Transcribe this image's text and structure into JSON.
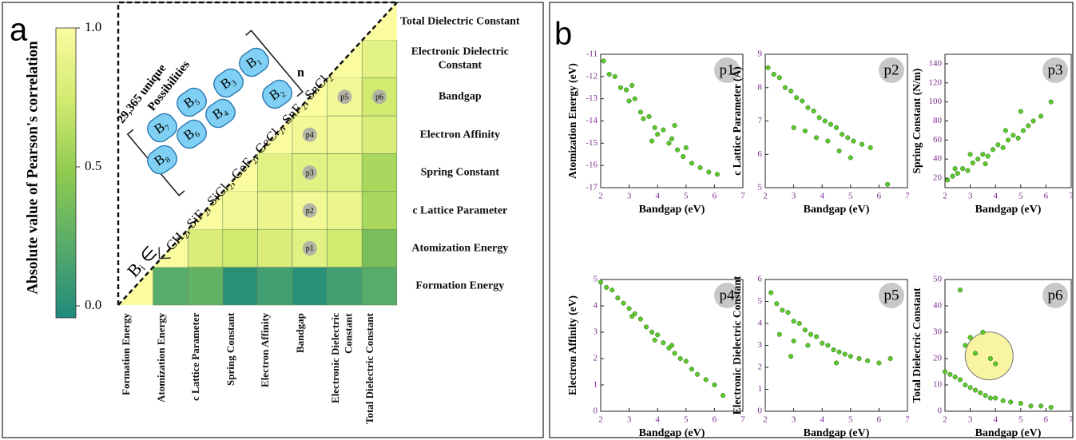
{
  "panel_labels": [
    "a",
    "b"
  ],
  "inset": {
    "count_line1": "29,365 unique",
    "count_line2": "Possibilities",
    "exponent": "n",
    "blocks": [
      "B₁",
      "B₂",
      "B₃",
      "B₄",
      "B₅",
      "B₆",
      "B₇",
      "B₈"
    ],
    "membership": "Bᵢ ∈",
    "members": "CH₂, SiF₂, SiCl₂, GeF₂, GeCl₂, SnF₂, SnCl₂"
  },
  "chart_data": [
    {
      "type": "heatmap",
      "variables": [
        "Formation Energy",
        "Atomization Energy",
        "c Lattice Parameter",
        "Spring Constant",
        "Electron Affinity",
        "Bandgap",
        "Electronic Dielectric Constant",
        "Total Dielectric Constant"
      ],
      "values": [
        [
          1,
          0.25,
          0.3,
          0.05,
          0.15,
          0.05,
          0.15,
          0.25
        ],
        [
          null,
          1,
          0.8,
          0.75,
          0.8,
          0.85,
          0.75,
          0.4
        ],
        [
          null,
          null,
          1,
          0.95,
          0.9,
          0.95,
          0.9,
          0.6
        ],
        [
          null,
          null,
          null,
          1,
          0.85,
          0.85,
          0.85,
          0.6
        ],
        [
          null,
          null,
          null,
          null,
          1,
          0.95,
          0.95,
          0.8
        ],
        [
          null,
          null,
          null,
          null,
          null,
          1,
          0.95,
          0.75
        ],
        [
          null,
          null,
          null,
          null,
          null,
          null,
          1,
          0.85
        ],
        [
          null,
          null,
          null,
          null,
          null,
          null,
          null,
          1
        ]
      ],
      "colorbar_label": "Absolute value of Pearson's correlation",
      "clim": [
        0,
        1
      ],
      "cticks": [
        {
          "value": 0,
          "label": "0.0"
        },
        0.5,
        {
          "value": 1,
          "label": "1.0"
        }
      ],
      "colors": [
        "#1f8a7c",
        "#58ab6a",
        "#8fcb50",
        "#d2ea70",
        "#fbfba0"
      ],
      "cell_labels": [
        "p1",
        "p2",
        "p3",
        "p4",
        "p5",
        "p6"
      ]
    },
    {
      "type": "scatter",
      "badge": "p1",
      "xlabel": "Bandgap (eV)",
      "ylabel": "Atomization Energy (eV)",
      "color": "#5cc82e",
      "x": [
        2.1,
        2.3,
        2.5,
        2.7,
        2.9,
        3.0,
        3.2,
        3.4,
        3.5,
        3.7,
        3.9,
        4.0,
        4.2,
        4.4,
        4.5,
        4.7,
        4.9,
        5.0,
        5.2,
        5.5,
        5.8,
        6.1,
        3.1,
        3.8,
        4.6
      ],
      "values": [
        -11.3,
        -11.9,
        -12.0,
        -12.5,
        -12.6,
        -13.1,
        -13.0,
        -13.6,
        -13.9,
        -13.8,
        -14.3,
        -14.6,
        -14.4,
        -15.0,
        -14.8,
        -15.3,
        -15.6,
        -15.2,
        -15.9,
        -16.1,
        -16.3,
        -16.4,
        -12.4,
        -14.9,
        -14.2
      ],
      "xlim": [
        2,
        7
      ],
      "xticks": [
        2,
        3,
        4,
        5,
        6,
        7
      ],
      "ylim": [
        -17,
        -11
      ],
      "yticks": [
        -11,
        -12,
        -13,
        -14,
        -15,
        -16,
        -17
      ]
    },
    {
      "type": "scatter",
      "badge": "p2",
      "xlabel": "Bandgap (eV)",
      "ylabel": "c Lattice Parameter (Å)",
      "color": "#5cc82e",
      "x": [
        2.1,
        2.3,
        2.5,
        2.7,
        2.9,
        3.1,
        3.3,
        3.5,
        3.7,
        3.9,
        4.1,
        4.3,
        4.5,
        4.7,
        4.9,
        5.1,
        5.4,
        5.7,
        3.0,
        3.4,
        3.8,
        4.2,
        4.6,
        5.0,
        6.3
      ],
      "values": [
        8.6,
        8.4,
        8.3,
        8.0,
        7.9,
        7.7,
        7.6,
        7.4,
        7.3,
        7.1,
        7.0,
        6.9,
        6.8,
        6.6,
        6.5,
        6.4,
        6.3,
        6.2,
        6.8,
        6.7,
        6.5,
        6.4,
        6.1,
        5.9,
        5.1
      ],
      "xlim": [
        2,
        7
      ],
      "xticks": [
        2,
        3,
        4,
        5,
        6,
        7
      ],
      "ylim": [
        5,
        9
      ],
      "yticks": [
        5,
        6,
        7,
        8,
        9
      ]
    },
    {
      "type": "scatter",
      "badge": "p3",
      "xlabel": "Bandgap (eV)",
      "ylabel": "Spring Constant (N/m)",
      "color": "#5cc82e",
      "x": [
        2.1,
        2.3,
        2.5,
        2.7,
        2.9,
        3.1,
        3.3,
        3.5,
        3.7,
        3.9,
        4.1,
        4.3,
        4.5,
        4.7,
        4.9,
        5.1,
        5.3,
        5.5,
        5.8,
        6.2,
        3.0,
        3.6,
        4.4,
        5.0,
        2.4
      ],
      "values": [
        18,
        22,
        25,
        30,
        28,
        36,
        40,
        45,
        43,
        50,
        55,
        52,
        60,
        65,
        62,
        70,
        75,
        80,
        85,
        100,
        45,
        35,
        70,
        90,
        30
      ],
      "xlim": [
        2,
        7
      ],
      "xticks": [
        2,
        3,
        4,
        5,
        6,
        7
      ],
      "ylim": [
        10,
        150
      ],
      "yticks": [
        20,
        40,
        60,
        80,
        100,
        120,
        140
      ]
    },
    {
      "type": "scatter",
      "badge": "p4",
      "xlabel": "Bandgap (eV)",
      "ylabel": "Electron Affinity (eV)",
      "color": "#5cc82e",
      "x": [
        2.0,
        2.2,
        2.4,
        2.6,
        2.8,
        3.0,
        3.2,
        3.4,
        3.6,
        3.8,
        4.0,
        4.2,
        4.4,
        4.6,
        4.8,
        5.0,
        5.2,
        5.4,
        5.7,
        6.0,
        6.3,
        3.1,
        3.9,
        4.5
      ],
      "values": [
        4.9,
        4.7,
        4.6,
        4.3,
        4.1,
        3.9,
        3.7,
        3.5,
        3.2,
        3.0,
        2.9,
        2.6,
        2.4,
        2.2,
        2.0,
        1.9,
        1.6,
        1.4,
        1.2,
        1.0,
        0.6,
        3.6,
        2.7,
        2.5
      ],
      "xlim": [
        2,
        7
      ],
      "xticks": [
        2,
        3,
        4,
        5,
        6,
        7
      ],
      "ylim": [
        0,
        5
      ],
      "yticks": [
        0,
        1,
        2,
        3,
        4,
        5
      ]
    },
    {
      "type": "scatter",
      "badge": "p5",
      "xlabel": "Bandgap (eV)",
      "ylabel": "Electronic Dielectric Constant",
      "color": "#5cc82e",
      "x": [
        2.2,
        2.4,
        2.6,
        2.8,
        3.0,
        3.2,
        3.4,
        3.6,
        3.8,
        4.0,
        4.2,
        4.4,
        4.6,
        4.8,
        5.0,
        5.3,
        5.6,
        6.0,
        6.4,
        2.5,
        3.0,
        3.5,
        4.5,
        2.9
      ],
      "values": [
        5.4,
        4.9,
        4.6,
        4.5,
        4.1,
        4.0,
        3.7,
        3.5,
        3.4,
        3.1,
        3.0,
        2.8,
        2.7,
        2.6,
        2.5,
        2.4,
        2.3,
        2.2,
        2.4,
        3.5,
        3.2,
        3.0,
        2.2,
        2.5
      ],
      "xlim": [
        2,
        7
      ],
      "xticks": [
        2,
        3,
        4,
        5,
        6,
        7
      ],
      "ylim": [
        0,
        6
      ],
      "yticks": [
        0,
        1,
        2,
        3,
        4,
        5,
        6
      ]
    },
    {
      "type": "scatter",
      "badge": "p6",
      "xlabel": "Bandgap (eV)",
      "ylabel": "Total Dielectric Constant",
      "color": "#5cc82e",
      "x": [
        2.0,
        2.2,
        2.4,
        2.6,
        2.8,
        3.0,
        3.2,
        3.4,
        3.6,
        3.8,
        4.0,
        4.3,
        4.6,
        5.0,
        5.4,
        5.8,
        6.2,
        2.8,
        3.2,
        3.5,
        3.8,
        4.0,
        2.6,
        3.0
      ],
      "values": [
        15,
        14,
        13,
        12,
        10,
        9,
        8,
        7,
        6,
        5,
        5,
        4,
        3.5,
        3,
        2,
        2,
        1.5,
        25,
        22,
        30,
        20,
        18,
        46,
        28
      ],
      "xlim": [
        2,
        7
      ],
      "xticks": [
        2,
        3,
        4,
        5,
        6,
        7
      ],
      "ylim": [
        0,
        50
      ],
      "yticks": [
        0,
        10,
        20,
        30,
        40,
        50
      ]
    }
  ]
}
